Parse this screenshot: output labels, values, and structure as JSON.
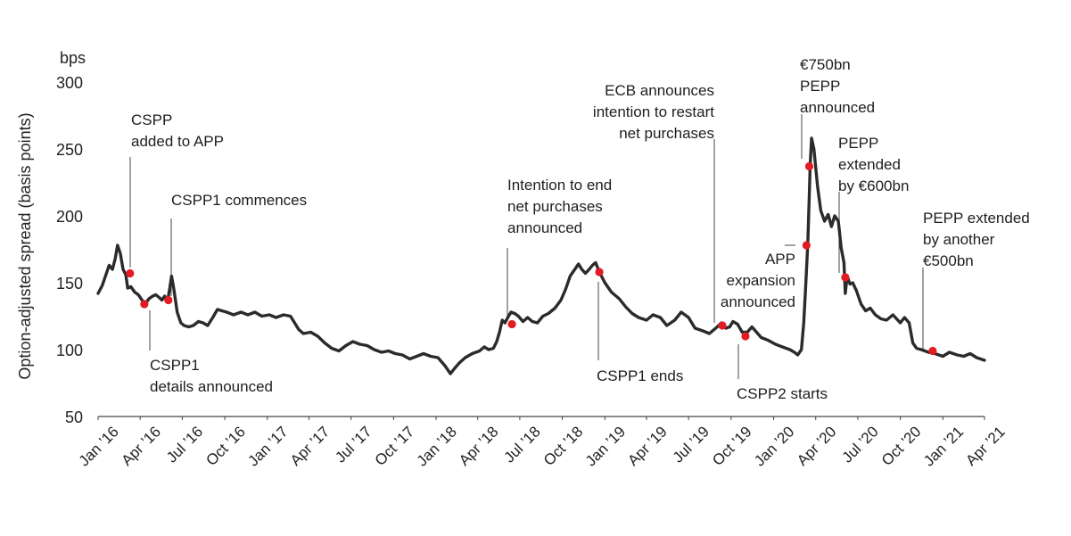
{
  "chart_data": {
    "type": "line",
    "ylabel": "Option-adjusted spread (basis points)",
    "yunit": "bps",
    "ylim": [
      50,
      300
    ],
    "yticks": [
      50,
      100,
      150,
      200,
      250,
      300
    ],
    "xticks": [
      {
        "date": "2016-01-01",
        "label": "Jan ’16"
      },
      {
        "date": "2016-04-01",
        "label": "Apr ’16"
      },
      {
        "date": "2016-07-01",
        "label": "Jul ’16"
      },
      {
        "date": "2016-10-01",
        "label": "Oct ’16"
      },
      {
        "date": "2017-01-01",
        "label": "Jan ’17"
      },
      {
        "date": "2017-04-01",
        "label": "Apr ’17"
      },
      {
        "date": "2017-07-01",
        "label": "Jul ’17"
      },
      {
        "date": "2017-10-01",
        "label": "Oct ’17"
      },
      {
        "date": "2018-01-01",
        "label": "Jan ’18"
      },
      {
        "date": "2018-04-01",
        "label": "Apr ’18"
      },
      {
        "date": "2018-07-01",
        "label": "Jul ’18"
      },
      {
        "date": "2018-10-01",
        "label": "Oct ’18"
      },
      {
        "date": "2019-01-01",
        "label": "Jan ’19"
      },
      {
        "date": "2019-04-01",
        "label": "Apr ’19"
      },
      {
        "date": "2019-07-01",
        "label": "Jul ’19"
      },
      {
        "date": "2019-10-01",
        "label": "Oct ’19"
      },
      {
        "date": "2020-01-01",
        "label": "Jan ’20"
      },
      {
        "date": "2020-04-01",
        "label": "Apr ’20"
      },
      {
        "date": "2020-07-01",
        "label": "Jul ’20"
      },
      {
        "date": "2020-10-01",
        "label": "Oct ’20"
      },
      {
        "date": "2021-01-01",
        "label": "Jan ’21"
      },
      {
        "date": "2021-04-01",
        "label": "Apr ’21"
      }
    ],
    "grid": false,
    "series": [
      {
        "color": "#2b2b2b",
        "points": [
          [
            "2016-01-01",
            142
          ],
          [
            "2016-01-10",
            148
          ],
          [
            "2016-01-18",
            156
          ],
          [
            "2016-01-25",
            163
          ],
          [
            "2016-02-01",
            160
          ],
          [
            "2016-02-07",
            168
          ],
          [
            "2016-02-12",
            178
          ],
          [
            "2016-02-18",
            172
          ],
          [
            "2016-02-24",
            160
          ],
          [
            "2016-03-01",
            156
          ],
          [
            "2016-03-05",
            146
          ],
          [
            "2016-03-12",
            147
          ],
          [
            "2016-03-20",
            143
          ],
          [
            "2016-03-28",
            141
          ],
          [
            "2016-04-05",
            137
          ],
          [
            "2016-04-12",
            134
          ],
          [
            "2016-04-20",
            138
          ],
          [
            "2016-04-28",
            140
          ],
          [
            "2016-05-05",
            141
          ],
          [
            "2016-05-12",
            139
          ],
          [
            "2016-05-18",
            137
          ],
          [
            "2016-05-24",
            140
          ],
          [
            "2016-05-30",
            136
          ],
          [
            "2016-06-04",
            146
          ],
          [
            "2016-06-08",
            155
          ],
          [
            "2016-06-13",
            145
          ],
          [
            "2016-06-20",
            128
          ],
          [
            "2016-06-28",
            120
          ],
          [
            "2016-07-05",
            118
          ],
          [
            "2016-07-15",
            117
          ],
          [
            "2016-07-25",
            118
          ],
          [
            "2016-08-05",
            121
          ],
          [
            "2016-08-15",
            120
          ],
          [
            "2016-08-25",
            118
          ],
          [
            "2016-09-05",
            124
          ],
          [
            "2016-09-15",
            130
          ],
          [
            "2016-09-25",
            129
          ],
          [
            "2016-10-05",
            128
          ],
          [
            "2016-10-20",
            126
          ],
          [
            "2016-11-05",
            128
          ],
          [
            "2016-11-20",
            126
          ],
          [
            "2016-12-05",
            128
          ],
          [
            "2016-12-20",
            125
          ],
          [
            "2017-01-05",
            126
          ],
          [
            "2017-01-20",
            124
          ],
          [
            "2017-02-05",
            126
          ],
          [
            "2017-02-20",
            125
          ],
          [
            "2017-03-01",
            120
          ],
          [
            "2017-03-10",
            115
          ],
          [
            "2017-03-20",
            112
          ],
          [
            "2017-04-05",
            113
          ],
          [
            "2017-04-20",
            110
          ],
          [
            "2017-05-05",
            105
          ],
          [
            "2017-05-20",
            101
          ],
          [
            "2017-06-05",
            99
          ],
          [
            "2017-06-20",
            103
          ],
          [
            "2017-07-05",
            106
          ],
          [
            "2017-07-20",
            104
          ],
          [
            "2017-08-05",
            103
          ],
          [
            "2017-08-20",
            100
          ],
          [
            "2017-09-05",
            98
          ],
          [
            "2017-09-20",
            99
          ],
          [
            "2017-10-05",
            97
          ],
          [
            "2017-10-20",
            96
          ],
          [
            "2017-11-05",
            93
          ],
          [
            "2017-11-20",
            95
          ],
          [
            "2017-12-05",
            97
          ],
          [
            "2017-12-20",
            95
          ],
          [
            "2018-01-05",
            94
          ],
          [
            "2018-01-20",
            88
          ],
          [
            "2018-02-01",
            82
          ],
          [
            "2018-02-10",
            86
          ],
          [
            "2018-02-20",
            90
          ],
          [
            "2018-03-05",
            94
          ],
          [
            "2018-03-20",
            97
          ],
          [
            "2018-04-05",
            99
          ],
          [
            "2018-04-15",
            102
          ],
          [
            "2018-04-25",
            100
          ],
          [
            "2018-05-05",
            101
          ],
          [
            "2018-05-12",
            106
          ],
          [
            "2018-05-18",
            113
          ],
          [
            "2018-05-24",
            122
          ],
          [
            "2018-05-30",
            120
          ],
          [
            "2018-06-05",
            124
          ],
          [
            "2018-06-12",
            128
          ],
          [
            "2018-06-20",
            127
          ],
          [
            "2018-06-28",
            125
          ],
          [
            "2018-07-08",
            121
          ],
          [
            "2018-07-18",
            124
          ],
          [
            "2018-07-28",
            121
          ],
          [
            "2018-08-08",
            120
          ],
          [
            "2018-08-20",
            125
          ],
          [
            "2018-09-01",
            127
          ],
          [
            "2018-09-15",
            131
          ],
          [
            "2018-09-28",
            137
          ],
          [
            "2018-10-08",
            145
          ],
          [
            "2018-10-18",
            155
          ],
          [
            "2018-10-28",
            160
          ],
          [
            "2018-11-05",
            164
          ],
          [
            "2018-11-12",
            160
          ],
          [
            "2018-11-20",
            157
          ],
          [
            "2018-11-28",
            160
          ],
          [
            "2018-12-05",
            163
          ],
          [
            "2018-12-12",
            165
          ],
          [
            "2018-12-20",
            158
          ],
          [
            "2019-01-01",
            150
          ],
          [
            "2019-01-15",
            143
          ],
          [
            "2019-02-01",
            138
          ],
          [
            "2019-02-15",
            132
          ],
          [
            "2019-03-01",
            127
          ],
          [
            "2019-03-15",
            124
          ],
          [
            "2019-04-01",
            122
          ],
          [
            "2019-04-15",
            126
          ],
          [
            "2019-05-01",
            124
          ],
          [
            "2019-05-15",
            118
          ],
          [
            "2019-06-01",
            122
          ],
          [
            "2019-06-15",
            128
          ],
          [
            "2019-07-01",
            124
          ],
          [
            "2019-07-15",
            116
          ],
          [
            "2019-08-01",
            114
          ],
          [
            "2019-08-15",
            112
          ],
          [
            "2019-09-01",
            117
          ],
          [
            "2019-09-10",
            120
          ],
          [
            "2019-09-20",
            116
          ],
          [
            "2019-09-28",
            117
          ],
          [
            "2019-10-05",
            121
          ],
          [
            "2019-10-15",
            119
          ],
          [
            "2019-10-25",
            113
          ],
          [
            "2019-11-05",
            113
          ],
          [
            "2019-11-15",
            117
          ],
          [
            "2019-11-25",
            113
          ],
          [
            "2019-12-05",
            109
          ],
          [
            "2019-12-20",
            107
          ],
          [
            "2020-01-05",
            104
          ],
          [
            "2020-01-20",
            102
          ],
          [
            "2020-02-05",
            100
          ],
          [
            "2020-02-15",
            98
          ],
          [
            "2020-02-22",
            96
          ],
          [
            "2020-03-01",
            100
          ],
          [
            "2020-03-06",
            120
          ],
          [
            "2020-03-10",
            145
          ],
          [
            "2020-03-15",
            180
          ],
          [
            "2020-03-18",
            215
          ],
          [
            "2020-03-20",
            238
          ],
          [
            "2020-03-23",
            258
          ],
          [
            "2020-03-28",
            250
          ],
          [
            "2020-04-05",
            222
          ],
          [
            "2020-04-12",
            204
          ],
          [
            "2020-04-20",
            196
          ],
          [
            "2020-04-28",
            201
          ],
          [
            "2020-05-05",
            192
          ],
          [
            "2020-05-12",
            200
          ],
          [
            "2020-05-20",
            196
          ],
          [
            "2020-05-26",
            176
          ],
          [
            "2020-06-01",
            165
          ],
          [
            "2020-06-04",
            142
          ],
          [
            "2020-06-08",
            155
          ],
          [
            "2020-06-14",
            149
          ],
          [
            "2020-06-20",
            150
          ],
          [
            "2020-06-28",
            144
          ],
          [
            "2020-07-08",
            134
          ],
          [
            "2020-07-18",
            129
          ],
          [
            "2020-07-28",
            131
          ],
          [
            "2020-08-08",
            126
          ],
          [
            "2020-08-20",
            123
          ],
          [
            "2020-09-01",
            122
          ],
          [
            "2020-09-15",
            126
          ],
          [
            "2020-10-01",
            120
          ],
          [
            "2020-10-10",
            124
          ],
          [
            "2020-10-20",
            120
          ],
          [
            "2020-10-28",
            105
          ],
          [
            "2020-11-05",
            101
          ],
          [
            "2020-11-15",
            100
          ],
          [
            "2020-12-01",
            98
          ],
          [
            "2020-12-15",
            97
          ],
          [
            "2021-01-01",
            95
          ],
          [
            "2021-01-15",
            98
          ],
          [
            "2021-02-01",
            96
          ],
          [
            "2021-02-15",
            95
          ],
          [
            "2021-03-01",
            97
          ],
          [
            "2021-03-15",
            94
          ],
          [
            "2021-04-01",
            92
          ]
        ]
      }
    ],
    "events": [
      {
        "date": "2016-03-10",
        "value": 157,
        "label": [
          "CSPP",
          "added to APP"
        ]
      },
      {
        "date": "2016-04-10",
        "value": 134,
        "label": [
          "CSPP1",
          "details announced"
        ]
      },
      {
        "date": "2016-06-01",
        "value": 137,
        "label": [
          "CSPP1 commences"
        ]
      },
      {
        "date": "2018-06-14",
        "value": 119,
        "label": [
          "Intention to end",
          "net purchases",
          "announced"
        ]
      },
      {
        "date": "2018-12-20",
        "value": 158,
        "label": [
          "CSPP1 ends"
        ]
      },
      {
        "date": "2019-09-12",
        "value": 118,
        "label": [
          "ECB announces",
          "intention to restart",
          "net purchases"
        ]
      },
      {
        "date": "2019-11-01",
        "value": 110,
        "label": [
          "CSPP2 starts"
        ]
      },
      {
        "date": "2020-03-12",
        "value": 178,
        "label": [
          "APP",
          "expansion",
          "announced"
        ]
      },
      {
        "date": "2020-03-18",
        "value": 237,
        "label": [
          "€750bn",
          "PEPP",
          "announced"
        ]
      },
      {
        "date": "2020-06-04",
        "value": 154,
        "label": [
          "PEPP",
          "extended",
          "by €600bn"
        ]
      },
      {
        "date": "2020-12-10",
        "value": 99,
        "label": [
          "PEPP extended",
          "by another",
          "€500bn"
        ]
      }
    ],
    "marker_color": "#e31b23"
  }
}
